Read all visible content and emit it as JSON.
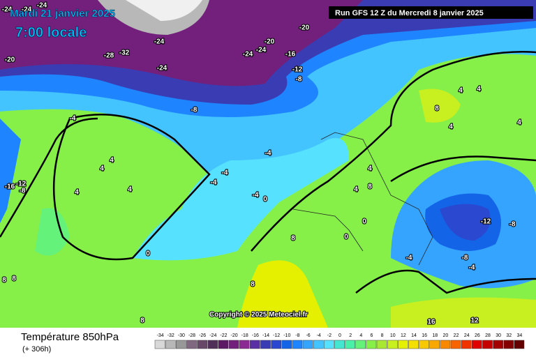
{
  "header": {
    "date": "Mardi 21 janvier 2025",
    "time": "7:00 locale",
    "run": "Run GFS 12 Z du Mercredi 8 janvier 2025"
  },
  "copyright": "Copyright © 2025 Meteociel.fr",
  "footer": {
    "title": "Température 850hPa",
    "lead": "(+ 306h)"
  },
  "legend": {
    "values": [
      -34,
      -32,
      -30,
      -28,
      -26,
      -24,
      -22,
      -20,
      -18,
      -16,
      -14,
      -12,
      -10,
      -8,
      -6,
      -4,
      -2,
      0,
      2,
      4,
      6,
      8,
      10,
      12,
      14,
      16,
      18,
      20,
      22,
      24,
      26,
      28,
      30,
      32,
      34
    ],
    "colors": [
      "#d8d8d8",
      "#b8b8b8",
      "#989898",
      "#806880",
      "#684868",
      "#503058",
      "#5c1a64",
      "#72207c",
      "#8c2a94",
      "#5a2ea4",
      "#3a3cb4",
      "#2a48d0",
      "#1464e8",
      "#1e84ff",
      "#34a4ff",
      "#44c4ff",
      "#56e2ff",
      "#44e6d0",
      "#48f0a8",
      "#64f27a",
      "#86f048",
      "#a8e832",
      "#c8f020",
      "#e4f000",
      "#f4e000",
      "#f8c800",
      "#f8a800",
      "#f88800",
      "#f86400",
      "#f03400",
      "#e00000",
      "#c40000",
      "#a40000",
      "#840000",
      "#640000"
    ]
  },
  "map_labels": [
    "-24",
    "-24",
    "-24",
    "-20",
    "-28",
    "-32",
    "-24",
    "-24",
    "-24",
    "-24",
    "-20",
    "-20",
    "-16",
    "-12",
    "-8",
    "-8",
    "-4",
    "-4",
    "-4",
    "-4",
    "-4",
    "0",
    "0",
    "4",
    "4",
    "4",
    "4",
    "-16",
    "-12",
    "-8",
    "8",
    "8",
    "8",
    "8",
    "4",
    "4",
    "8",
    "0",
    "0",
    "-4",
    "-12",
    "-8",
    "-8",
    "-4",
    "4",
    "4",
    "4",
    "4",
    "8",
    "12",
    "16",
    "8"
  ]
}
